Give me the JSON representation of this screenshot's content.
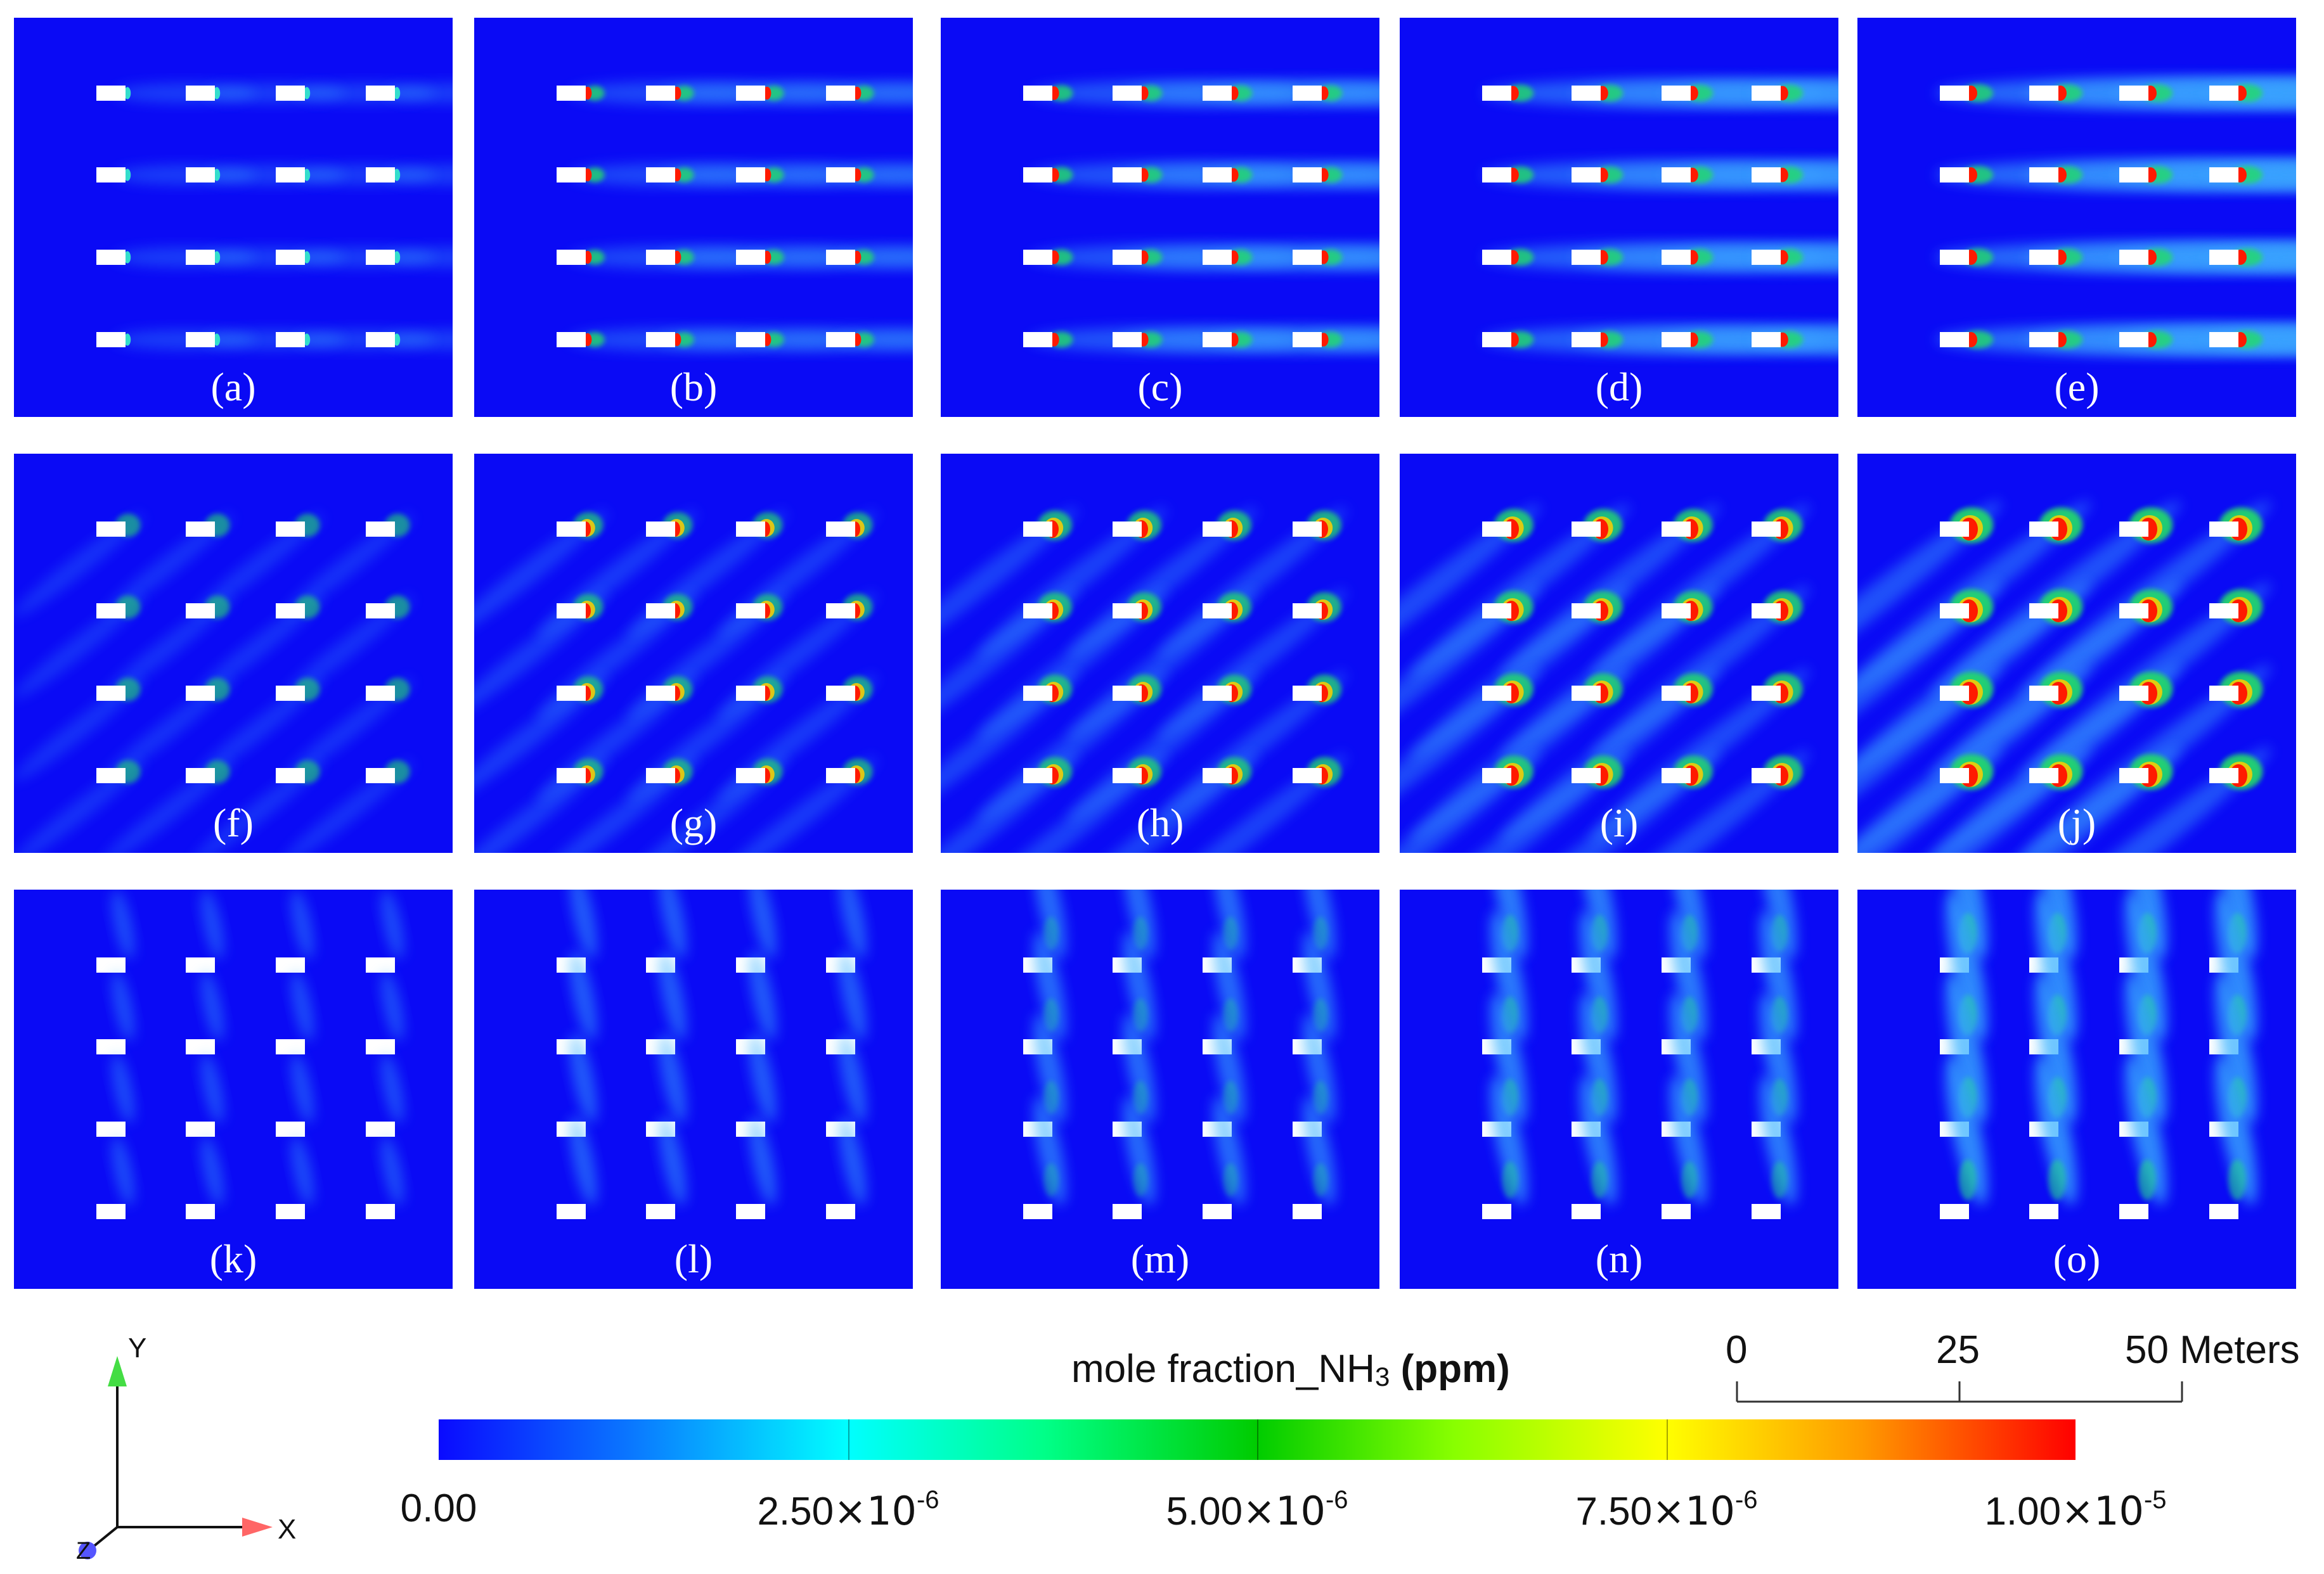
{
  "panels": [
    {
      "label": "(a)",
      "pattern": "x",
      "level": 0.2
    },
    {
      "label": "(b)",
      "pattern": "x",
      "level": 0.4
    },
    {
      "label": "(c)",
      "pattern": "x",
      "level": 0.6
    },
    {
      "label": "(d)",
      "pattern": "x",
      "level": 0.8
    },
    {
      "label": "(e)",
      "pattern": "x",
      "level": 1.0
    },
    {
      "label": "(f)",
      "pattern": "diag",
      "level": 0.2
    },
    {
      "label": "(g)",
      "pattern": "diag",
      "level": 0.4
    },
    {
      "label": "(h)",
      "pattern": "diag",
      "level": 0.6
    },
    {
      "label": "(i)",
      "pattern": "diag",
      "level": 0.8
    },
    {
      "label": "(j)",
      "pattern": "diag",
      "level": 1.0
    },
    {
      "label": "(k)",
      "pattern": "y",
      "level": 0.2
    },
    {
      "label": "(l)",
      "pattern": "y",
      "level": 0.4
    },
    {
      "label": "(m)",
      "pattern": "y",
      "level": 0.6
    },
    {
      "label": "(n)",
      "pattern": "y",
      "level": 0.8
    },
    {
      "label": "(o)",
      "pattern": "y",
      "level": 1.0
    }
  ],
  "colorbar": {
    "title_main": "mole fraction_NH",
    "title_sub": "3",
    "title_unit": "(ppm)",
    "ticks": [
      {
        "mant": "0.00",
        "exp": ""
      },
      {
        "mant": "2.50",
        "exp": "-6"
      },
      {
        "mant": "5.00",
        "exp": "-6"
      },
      {
        "mant": "7.50",
        "exp": "-6"
      },
      {
        "mant": "1.00",
        "exp": "-5"
      }
    ],
    "colors": [
      "#0a0aff",
      "#00ffff",
      "#00cc00",
      "#ffff00",
      "#ff0000"
    ]
  },
  "scale_bar": {
    "labels": [
      "0",
      "25",
      "50 Meters"
    ]
  },
  "axes": {
    "x": "X",
    "y": "Y",
    "z": "Z",
    "colors": {
      "x": "#ff6666",
      "y": "#44dd44",
      "z": "#5555ff"
    }
  }
}
